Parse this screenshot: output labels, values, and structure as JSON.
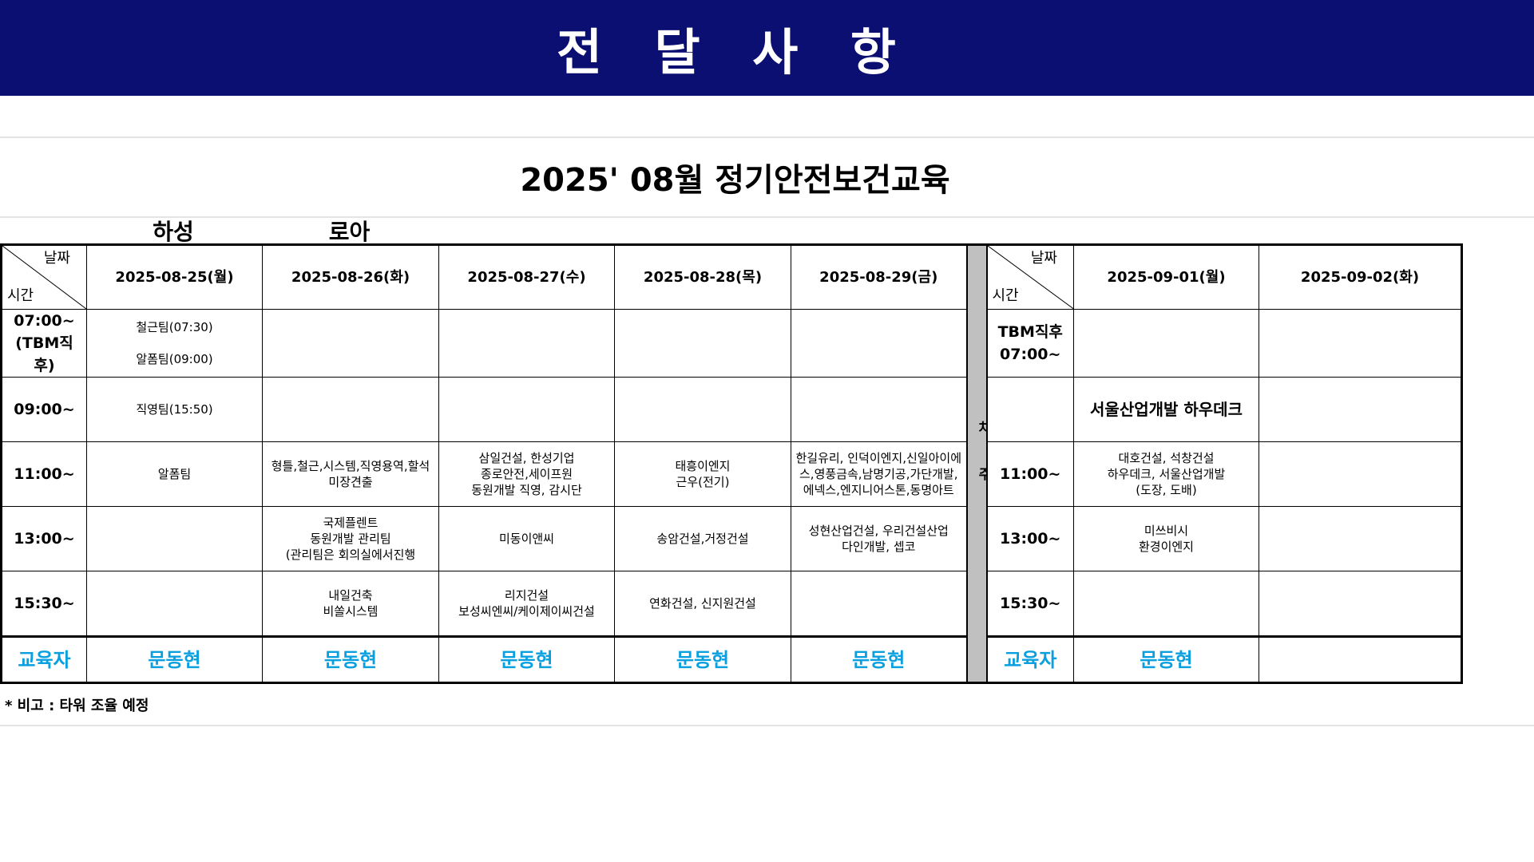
{
  "banner": {
    "title": "전 달 사 항",
    "bg_color": "#0b0f72"
  },
  "schedule_title": "2025' 08월 정기안전보건교육",
  "sub_labels": [
    "하성",
    "로아"
  ],
  "diag": {
    "date_label": "날짜",
    "time_label": "시간"
  },
  "separator_label": "차\n주",
  "week1": {
    "dates": [
      "2025-08-25(월)",
      "2025-08-26(화)",
      "2025-08-27(수)",
      "2025-08-28(목)",
      "2025-08-29(금)"
    ],
    "rows": [
      {
        "time": "07:00~\n(TBM직후)",
        "cells": [
          "철근팀(07:30)\n\n알폼팀(09:00)",
          "",
          "",
          "",
          ""
        ]
      },
      {
        "time": "09:00~",
        "cells": [
          "직영팀(15:50)",
          "",
          "",
          "",
          ""
        ]
      },
      {
        "time": "11:00~",
        "cells": [
          "알폼팀",
          "형틀,철근,시스템,직영용역,할석\n미장견출",
          "삼일건설, 한성기업\n종로안전,세이프원\n동원개발 직영, 감시단",
          "태흥이엔지\n근우(전기)",
          "한길유리, 인덕이엔지,신일아이에스,영풍금속,남명기공,가단개발,에넥스,엔지니어스톤,동명아트"
        ]
      },
      {
        "time": "13:00~",
        "cells": [
          "",
          "국제플렌트\n동원개발 관리팀\n(관리팀은 회의실에서진행",
          "미동이앤씨",
          "송암건설,거정건설",
          "성현산업건설, 우리건설산업\n다인개발, 셉코"
        ]
      },
      {
        "time": "15:30~",
        "cells": [
          "",
          "내일건축\n비쏠시스템",
          "리지건설\n보성씨엔씨/케이제이씨건설",
          "연화건설, 신지원건설",
          ""
        ]
      }
    ],
    "instructor_label": "교육자",
    "instructors": [
      "문동현",
      "문동현",
      "문동현",
      "문동현",
      "문동현"
    ]
  },
  "week2": {
    "dates": [
      "2025-09-01(월)",
      "2025-09-02(화)"
    ],
    "rows": [
      {
        "time": "TBM직후\n07:00~",
        "cells": [
          "",
          ""
        ]
      },
      {
        "time": "",
        "cells": [
          "서울산업개발 하우데크",
          ""
        ]
      },
      {
        "time": "11:00~",
        "cells": [
          "대호건설, 석창건설\n하우데크, 서울산업개발\n(도장, 도배)",
          ""
        ]
      },
      {
        "time": "13:00~",
        "cells": [
          "미쓰비시\n환경이엔지",
          ""
        ]
      },
      {
        "time": "15:30~",
        "cells": [
          "",
          ""
        ]
      }
    ],
    "instructor_label": "교육자",
    "instructors": [
      "문동현",
      ""
    ]
  },
  "note": "* 비고 :  타워 조율 예정",
  "colors": {
    "instructor": "#0aa0e0",
    "separator": "#c0c0c0"
  }
}
